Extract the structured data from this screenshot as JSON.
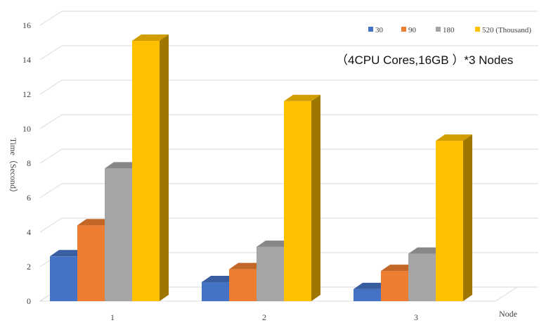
{
  "chart_data": {
    "type": "bar",
    "style": "3d-clustered-column",
    "categories": [
      "1",
      "2",
      "3"
    ],
    "series": [
      {
        "name": "30",
        "color": "#4472C4",
        "values": [
          2.6,
          1.1,
          0.7
        ]
      },
      {
        "name": "90",
        "color": "#ED7D31",
        "values": [
          4.4,
          1.85,
          1.75
        ]
      },
      {
        "name": "180",
        "color": "#A5A5A5",
        "values": [
          7.7,
          3.15,
          2.75
        ]
      },
      {
        "name": "520 (Thousand)",
        "color": "#FFC000",
        "values": [
          15.1,
          11.6,
          9.3
        ]
      }
    ],
    "xlabel": "Node",
    "ylabel": "Time（Second）",
    "ylim": [
      0,
      16
    ],
    "yticks": [
      "0",
      "2",
      "4",
      "6",
      "8",
      "10",
      "12",
      "14",
      "16"
    ],
    "annotation": "（4CPU Cores,16GB ）*3 Nodes",
    "legend_position": "top-right",
    "grid": true
  }
}
